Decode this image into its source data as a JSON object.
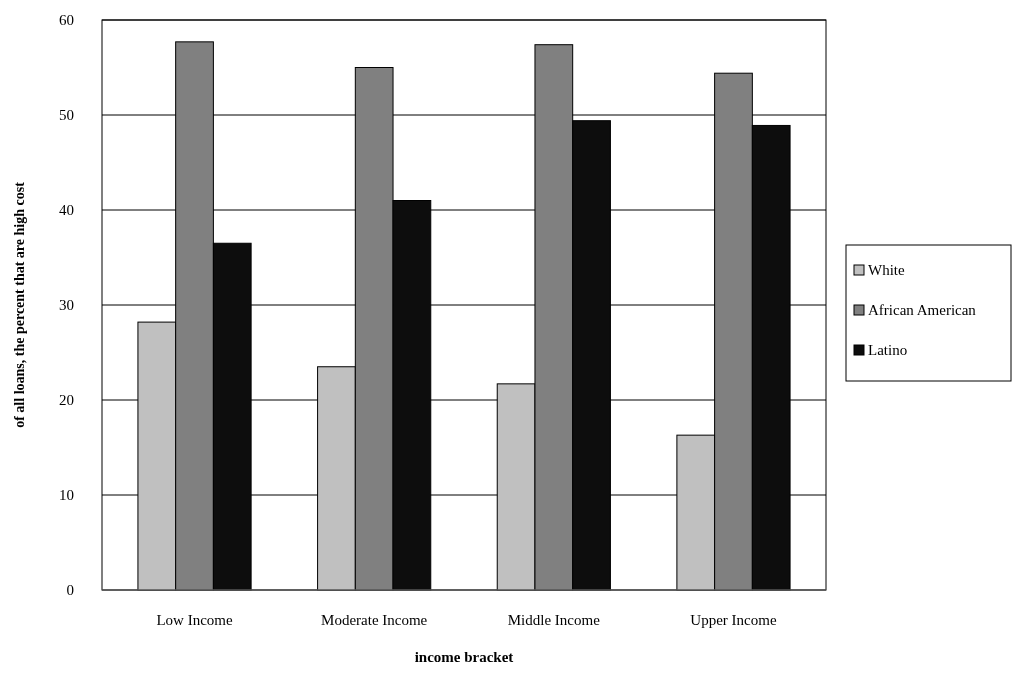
{
  "chart_data": {
    "type": "bar",
    "xlabel": "income bracket",
    "ylabel": "of all loans, the percent that are high cost",
    "categories": [
      "Low Income",
      "Moderate Income",
      "Middle Income",
      "Upper Income"
    ],
    "series": [
      {
        "name": "White",
        "color": "#c0c0c0",
        "values": [
          28.2,
          23.5,
          21.7,
          16.3
        ]
      },
      {
        "name": "African American",
        "color": "#808080",
        "values": [
          57.7,
          55.0,
          57.4,
          54.4
        ]
      },
      {
        "name": "Latino",
        "color": "#0d0d0d",
        "values": [
          36.5,
          41.0,
          49.4,
          48.9
        ]
      }
    ],
    "ylim": [
      0,
      60
    ],
    "yticks": [
      0,
      10,
      20,
      30,
      40,
      50,
      60
    ],
    "grid": "y",
    "legend": "right"
  }
}
